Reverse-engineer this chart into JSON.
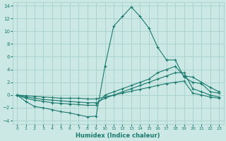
{
  "bg_color": "#cce8e5",
  "grid_color": "#aad4d0",
  "line_color": "#1a7a6e",
  "xlabel": "Humidex (Indice chaleur)",
  "xlim": [
    -0.5,
    23.5
  ],
  "ylim": [
    -4.5,
    14.5
  ],
  "yticks": [
    -4,
    -2,
    0,
    2,
    4,
    6,
    8,
    10,
    12,
    14
  ],
  "xticks": [
    0,
    1,
    2,
    3,
    4,
    5,
    6,
    7,
    8,
    9,
    10,
    11,
    12,
    13,
    14,
    15,
    16,
    17,
    18,
    19,
    20,
    21,
    22,
    23
  ],
  "series": [
    {
      "x": [
        0,
        1,
        2,
        3,
        4,
        5,
        6,
        7,
        8,
        9,
        10,
        11,
        12,
        13,
        14,
        15,
        16,
        17,
        18,
        19,
        20,
        21,
        22,
        23
      ],
      "y": [
        0,
        -1,
        -1.8,
        -2,
        -2.3,
        -2.6,
        -2.8,
        -3.1,
        -3.4,
        -3.3,
        4.5,
        10.8,
        12.3,
        13.8,
        12.3,
        10.5,
        7.5,
        5.5,
        5.5,
        2.8,
        2.0,
        1.8,
        0.5,
        0.3
      ]
    },
    {
      "x": [
        0,
        1,
        2,
        3,
        4,
        5,
        6,
        7,
        8,
        9,
        10,
        11,
        12,
        13,
        14,
        15,
        16,
        17,
        18,
        19,
        20,
        21,
        22,
        23
      ],
      "y": [
        0,
        -0.5,
        -0.8,
        -1.0,
        -1.2,
        -1.3,
        -1.4,
        -1.5,
        -1.6,
        -1.6,
        0.0,
        0.5,
        1.0,
        1.5,
        2.0,
        2.5,
        3.5,
        4.0,
        4.5,
        3.0,
        2.8,
        2.0,
        1.2,
        0.5
      ]
    },
    {
      "x": [
        0,
        1,
        2,
        3,
        4,
        5,
        6,
        7,
        8,
        9,
        10,
        11,
        12,
        13,
        14,
        15,
        16,
        17,
        18,
        19,
        20,
        21,
        22,
        23
      ],
      "y": [
        0,
        -0.3,
        -0.5,
        -0.7,
        -0.8,
        -0.9,
        -1.0,
        -1.1,
        -1.2,
        -1.2,
        -0.5,
        0.0,
        0.5,
        1.0,
        1.5,
        2.0,
        2.5,
        3.0,
        3.5,
        3.5,
        1.0,
        0.5,
        0.0,
        -0.3
      ]
    },
    {
      "x": [
        0,
        1,
        2,
        3,
        4,
        5,
        6,
        7,
        8,
        9,
        10,
        11,
        12,
        13,
        14,
        15,
        16,
        17,
        18,
        19,
        20,
        21,
        22,
        23
      ],
      "y": [
        0,
        -0.1,
        -0.2,
        -0.3,
        -0.4,
        -0.5,
        -0.5,
        -0.5,
        -0.6,
        -0.6,
        -0.3,
        0.0,
        0.3,
        0.6,
        0.9,
        1.2,
        1.5,
        1.8,
        2.0,
        2.2,
        0.3,
        0.0,
        -0.3,
        -0.5
      ]
    }
  ]
}
